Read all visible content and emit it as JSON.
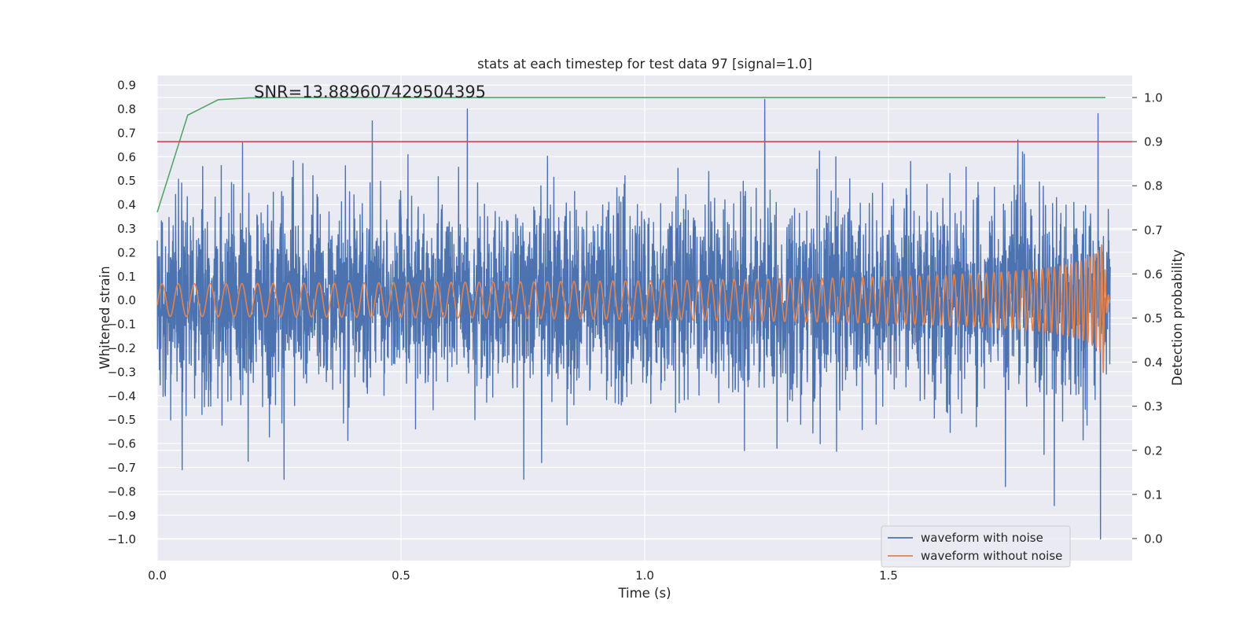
{
  "chart_data": {
    "type": "line",
    "title": "stats at each timestep for test data 97 [signal=1.0]",
    "xlabel": "Time (s)",
    "ylabel": "Whitened strain",
    "y2label": "Detection probability",
    "annotation": "SNR=13.889607429504395",
    "xlim": [
      0.0,
      2.0
    ],
    "ylim": [
      -1.09,
      0.94
    ],
    "y2lim": [
      -0.05,
      1.05
    ],
    "xticks": [
      "0.0",
      "0.5",
      "1.0",
      "1.5"
    ],
    "yticks": [
      "0.9",
      "0.8",
      "0.7",
      "0.6",
      "0.5",
      "0.4",
      "0.3",
      "0.2",
      "0.1",
      "0.0",
      "−0.1",
      "−0.2",
      "−0.3",
      "−0.4",
      "−0.5",
      "−0.6",
      "−0.7",
      "−0.8",
      "−0.9",
      "−1.0"
    ],
    "y2ticks": [
      "1.0",
      "0.9",
      "0.8",
      "0.7",
      "0.6",
      "0.5",
      "0.4",
      "0.3",
      "0.2",
      "0.1",
      "0.0"
    ],
    "grid": true,
    "legend_position": "lower right",
    "series": [
      {
        "name": "waveform with noise",
        "color": "#4c72b0",
        "axis": "left",
        "style": "dense noisy oscillation, amplitude about ±0.5, extremes 0.84 at t=1.25 and −1.0 at t=1.93"
      },
      {
        "name": "waveform without noise",
        "color": "#dd8452",
        "axis": "left",
        "style": "chirp with amplitude rising from 0.07 to 0.4, merger near t=1.94, ringdown to 0"
      },
      {
        "axis": "right",
        "color": "#55a868",
        "x": [
          0.0,
          0.0625,
          0.125,
          0.1875,
          0.25,
          0.5,
          1.0,
          1.5,
          1.945
        ],
        "y": [
          0.74,
          0.96,
          0.995,
          0.999,
          1.0,
          1.0,
          1.0,
          1.0,
          1.0
        ]
      },
      {
        "axis": "right",
        "color": "#c44e52",
        "x": [
          0.0,
          2.0
        ],
        "y": [
          0.9,
          0.9
        ]
      }
    ],
    "waveform_with_noise_points": [
      [
        0.0,
        0.25
      ],
      [
        0.05,
        0.49
      ],
      [
        0.051,
        -0.71
      ],
      [
        0.26,
        -0.75
      ],
      [
        0.441,
        0.75
      ],
      [
        0.636,
        0.8
      ],
      [
        0.752,
        -0.75
      ],
      [
        1.246,
        0.84
      ],
      [
        1.74,
        -0.78
      ],
      [
        1.775,
        0.62
      ],
      [
        1.84,
        -0.86
      ],
      [
        1.93,
        0.78
      ],
      [
        1.935,
        -1.0
      ]
    ]
  },
  "legend": {
    "noise_label": "waveform with noise",
    "clean_label": "waveform without noise"
  },
  "colors": {
    "axes_bg": "#eaeaf2",
    "grid": "#ffffff",
    "noise": "#4c72b0",
    "clean": "#dd8452",
    "probability": "#55a868",
    "threshold": "#c44e52"
  }
}
